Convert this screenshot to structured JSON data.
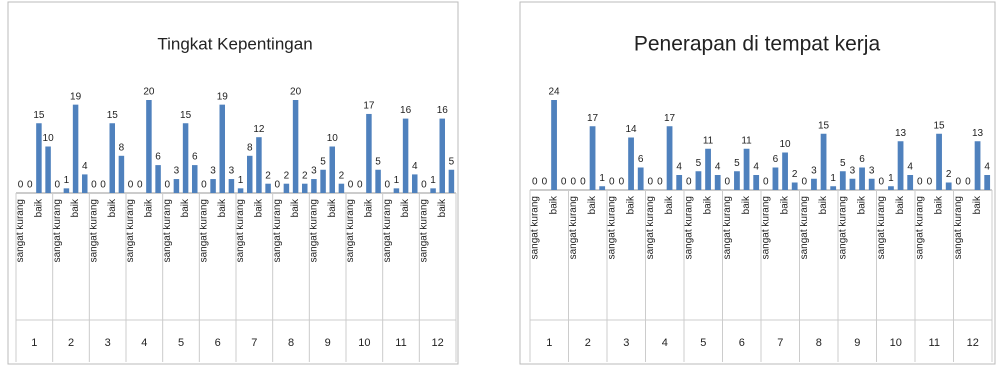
{
  "chart_data": [
    {
      "type": "bar",
      "title": "Tingkat Kepentingan",
      "color": "#4f81bd",
      "ylim": [
        0,
        20
      ],
      "groups": [
        "1",
        "2",
        "3",
        "4",
        "5",
        "6",
        "7",
        "8",
        "9",
        "10",
        "11",
        "12"
      ],
      "categories": [
        "sangat kurang",
        null,
        "baik",
        null,
        "sangat kurang",
        null,
        "baik",
        null,
        "sangat kurang",
        null,
        "baik",
        null,
        "sangat kurang",
        null,
        "baik",
        null,
        "sangat kurang",
        null,
        "baik",
        null,
        "sangat kurang",
        null,
        "baik",
        null,
        "sangat kurang",
        null,
        "baik",
        null,
        "sangat kurang",
        null,
        "baik",
        null,
        "sangat kurang",
        null,
        "baik",
        null,
        "sangat kurang",
        null,
        "baik",
        null,
        "sangat kurang",
        null,
        "baik",
        null,
        "sangat kurang",
        null,
        "baik",
        null
      ],
      "values": [
        0,
        0,
        15,
        10,
        0,
        1,
        19,
        4,
        0,
        0,
        15,
        8,
        0,
        0,
        20,
        6,
        0,
        3,
        15,
        6,
        0,
        3,
        19,
        3,
        1,
        8,
        12,
        2,
        0,
        2,
        20,
        2,
        3,
        5,
        10,
        2,
        0,
        0,
        17,
        5,
        0,
        1,
        16,
        4,
        0,
        1,
        16,
        5
      ]
    },
    {
      "type": "bar",
      "title": "Penerapan di tempat kerja",
      "color": "#4f81bd",
      "ylim": [
        0,
        24
      ],
      "groups": [
        "1",
        "2",
        "3",
        "4",
        "5",
        "6",
        "7",
        "8",
        "9",
        "10",
        "11",
        "12"
      ],
      "categories": [
        "sangat kurang",
        null,
        "baik",
        null,
        "sangat kurang",
        null,
        "baik",
        null,
        "sangat kurang",
        null,
        "baik",
        null,
        "sangat kurang",
        null,
        "baik",
        null,
        "sangat kurang",
        null,
        "baik",
        null,
        "sangat kurang",
        null,
        "baik",
        null,
        "sangat kurang",
        null,
        "baik",
        null,
        "sangat kurang",
        null,
        "baik",
        null,
        "sangat kurang",
        null,
        "baik",
        null,
        "sangat kurang",
        null,
        "baik",
        null,
        "sangat kurang",
        null,
        "baik",
        null,
        "sangat kurang",
        null,
        "baik",
        null
      ],
      "values": [
        0,
        0,
        24,
        0,
        0,
        0,
        17,
        1,
        0,
        0,
        14,
        6,
        0,
        0,
        17,
        4,
        0,
        5,
        11,
        4,
        0,
        5,
        11,
        4,
        0,
        6,
        10,
        2,
        0,
        3,
        15,
        1,
        5,
        3,
        6,
        3,
        0,
        1,
        13,
        4,
        0,
        0,
        15,
        2,
        0,
        0,
        13,
        4
      ]
    }
  ]
}
